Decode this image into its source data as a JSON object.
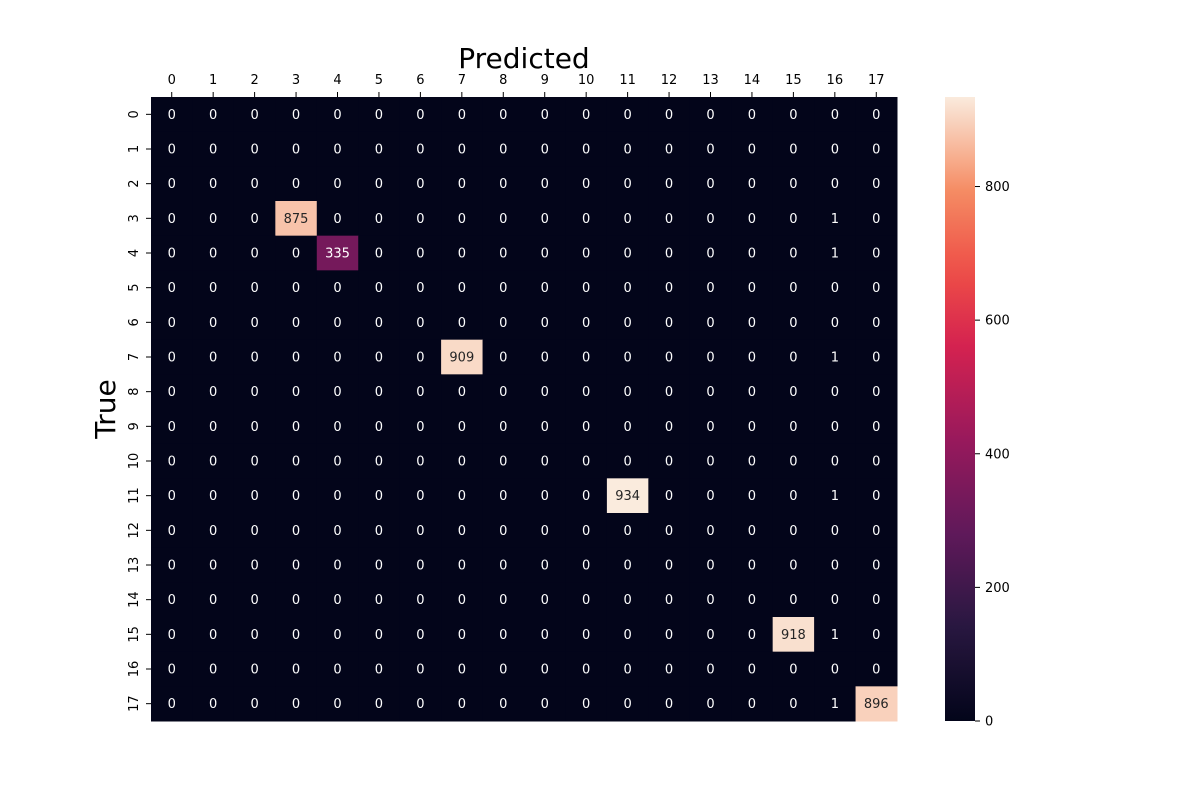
{
  "chart_data": {
    "type": "heatmap",
    "title": "",
    "xlabel": "Predicted",
    "ylabel": "True",
    "x_ticks": [
      "0",
      "1",
      "2",
      "3",
      "4",
      "5",
      "6",
      "7",
      "8",
      "9",
      "10",
      "11",
      "12",
      "13",
      "14",
      "15",
      "16",
      "17"
    ],
    "y_ticks": [
      "0",
      "1",
      "2",
      "3",
      "4",
      "5",
      "6",
      "7",
      "8",
      "9",
      "10",
      "11",
      "12",
      "13",
      "14",
      "15",
      "16",
      "17"
    ],
    "values": [
      [
        0,
        0,
        0,
        0,
        0,
        0,
        0,
        0,
        0,
        0,
        0,
        0,
        0,
        0,
        0,
        0,
        0,
        0
      ],
      [
        0,
        0,
        0,
        0,
        0,
        0,
        0,
        0,
        0,
        0,
        0,
        0,
        0,
        0,
        0,
        0,
        0,
        0
      ],
      [
        0,
        0,
        0,
        0,
        0,
        0,
        0,
        0,
        0,
        0,
        0,
        0,
        0,
        0,
        0,
        0,
        0,
        0
      ],
      [
        0,
        0,
        0,
        875,
        0,
        0,
        0,
        0,
        0,
        0,
        0,
        0,
        0,
        0,
        0,
        0,
        1,
        0
      ],
      [
        0,
        0,
        0,
        0,
        335,
        0,
        0,
        0,
        0,
        0,
        0,
        0,
        0,
        0,
        0,
        0,
        1,
        0
      ],
      [
        0,
        0,
        0,
        0,
        0,
        0,
        0,
        0,
        0,
        0,
        0,
        0,
        0,
        0,
        0,
        0,
        0,
        0
      ],
      [
        0,
        0,
        0,
        0,
        0,
        0,
        0,
        0,
        0,
        0,
        0,
        0,
        0,
        0,
        0,
        0,
        0,
        0
      ],
      [
        0,
        0,
        0,
        0,
        0,
        0,
        0,
        909,
        0,
        0,
        0,
        0,
        0,
        0,
        0,
        0,
        1,
        0
      ],
      [
        0,
        0,
        0,
        0,
        0,
        0,
        0,
        0,
        0,
        0,
        0,
        0,
        0,
        0,
        0,
        0,
        0,
        0
      ],
      [
        0,
        0,
        0,
        0,
        0,
        0,
        0,
        0,
        0,
        0,
        0,
        0,
        0,
        0,
        0,
        0,
        0,
        0
      ],
      [
        0,
        0,
        0,
        0,
        0,
        0,
        0,
        0,
        0,
        0,
        0,
        0,
        0,
        0,
        0,
        0,
        0,
        0
      ],
      [
        0,
        0,
        0,
        0,
        0,
        0,
        0,
        0,
        0,
        0,
        0,
        934,
        0,
        0,
        0,
        0,
        1,
        0
      ],
      [
        0,
        0,
        0,
        0,
        0,
        0,
        0,
        0,
        0,
        0,
        0,
        0,
        0,
        0,
        0,
        0,
        0,
        0
      ],
      [
        0,
        0,
        0,
        0,
        0,
        0,
        0,
        0,
        0,
        0,
        0,
        0,
        0,
        0,
        0,
        0,
        0,
        0
      ],
      [
        0,
        0,
        0,
        0,
        0,
        0,
        0,
        0,
        0,
        0,
        0,
        0,
        0,
        0,
        0,
        0,
        0,
        0
      ],
      [
        0,
        0,
        0,
        0,
        0,
        0,
        0,
        0,
        0,
        0,
        0,
        0,
        0,
        0,
        0,
        918,
        1,
        0
      ],
      [
        0,
        0,
        0,
        0,
        0,
        0,
        0,
        0,
        0,
        0,
        0,
        0,
        0,
        0,
        0,
        0,
        0,
        0
      ],
      [
        0,
        0,
        0,
        0,
        0,
        0,
        0,
        0,
        0,
        0,
        0,
        0,
        0,
        0,
        0,
        0,
        1,
        896
      ]
    ],
    "colorbar": {
      "range": [
        0,
        934
      ],
      "ticks": [
        0,
        200,
        400,
        600,
        800
      ],
      "colormap": "rocket"
    },
    "x_axis_position": "top",
    "grid": false
  }
}
